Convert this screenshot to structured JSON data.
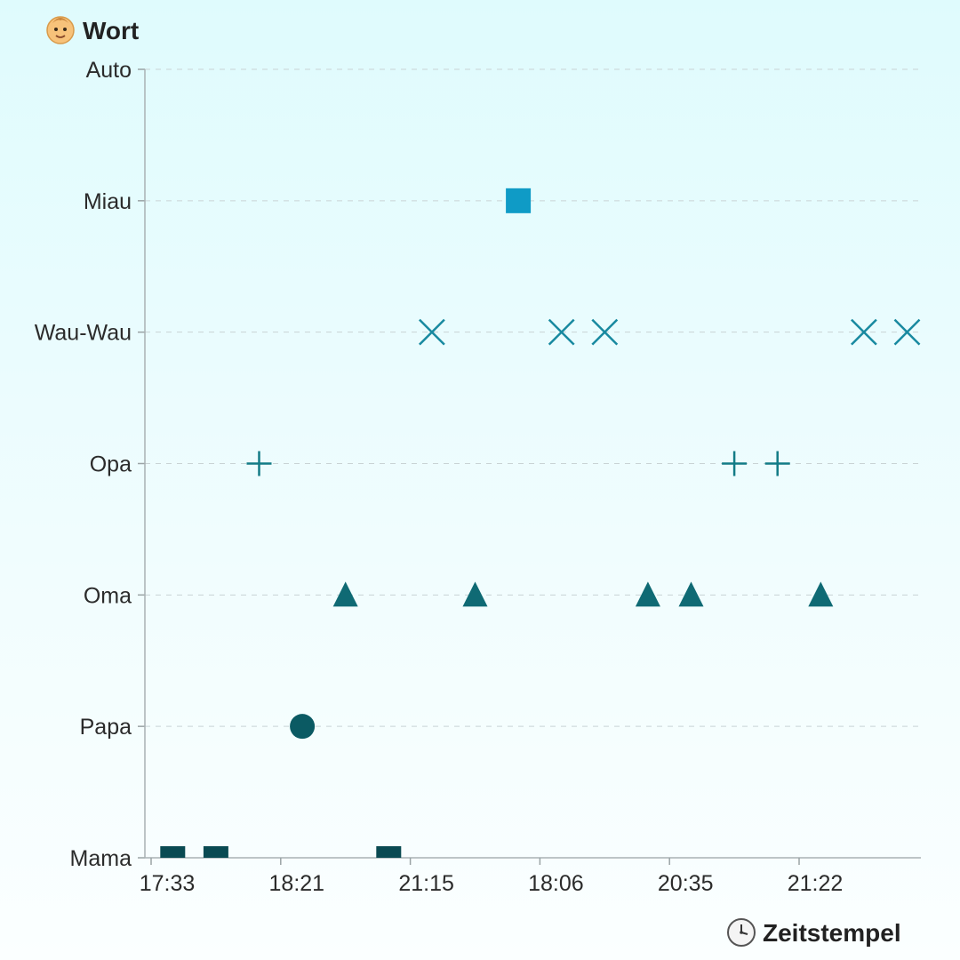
{
  "chart_data": {
    "type": "scatter",
    "ylabel": "Wort",
    "ylabel_icon": "baby-face-icon",
    "xlabel": "Zeitstempel",
    "xlabel_icon": "clock-icon",
    "y_categories": [
      "Mama",
      "Papa",
      "Oma",
      "Opa",
      "Wau-Wau",
      "Miau",
      "Auto"
    ],
    "x_tick_labels": [
      "17:33",
      "18:21",
      "21:15",
      "18:06",
      "20:35",
      "21:22"
    ],
    "x_tick_positions": [
      0,
      3,
      6,
      9,
      12,
      15
    ],
    "xlim": [
      -0.2,
      17.8
    ],
    "grid": "horizontal-dashed",
    "series": [
      {
        "name": "Mama",
        "marker": "square-flat",
        "color": "#0a4a52",
        "x": [
          0.5,
          1.5,
          5.5
        ]
      },
      {
        "name": "Papa",
        "marker": "circle",
        "color": "#0b5a63",
        "x": [
          3.5
        ]
      },
      {
        "name": "Oma",
        "marker": "triangle",
        "color": "#0f6a74",
        "x": [
          4.5,
          7.5,
          11.5,
          12.5,
          15.5
        ]
      },
      {
        "name": "Opa",
        "marker": "plus",
        "color": "#137b86",
        "x": [
          2.5,
          13.5,
          14.5
        ]
      },
      {
        "name": "Wau-Wau",
        "marker": "x",
        "color": "#1889a0",
        "x": [
          6.5,
          9.5,
          10.5,
          16.5,
          17.5
        ]
      },
      {
        "name": "Miau",
        "marker": "square",
        "color": "#0f9bc6",
        "x": [
          8.5
        ]
      },
      {
        "name": "Auto",
        "marker": "none",
        "color": "#1aa6cf",
        "x": []
      }
    ]
  }
}
